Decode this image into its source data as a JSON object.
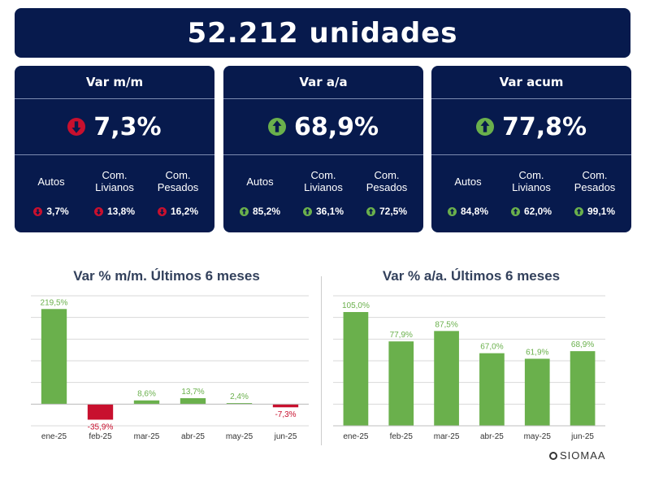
{
  "header": {
    "title": "52.212 unidades"
  },
  "cards": [
    {
      "title": "Var m/m",
      "value": "7,3%",
      "direction": "down",
      "subs": [
        {
          "label": "Autos",
          "value": "3,7%",
          "direction": "down"
        },
        {
          "label": "Com.\nLivianos",
          "value": "13,8%",
          "direction": "down"
        },
        {
          "label": "Com.\nPesados",
          "value": "16,2%",
          "direction": "down"
        }
      ]
    },
    {
      "title": "Var a/a",
      "value": "68,9%",
      "direction": "up",
      "subs": [
        {
          "label": "Autos",
          "value": "85,2%",
          "direction": "up"
        },
        {
          "label": "Com.\nLivianos",
          "value": "36,1%",
          "direction": "up"
        },
        {
          "label": "Com.\nPesados",
          "value": "72,5%",
          "direction": "up"
        }
      ]
    },
    {
      "title": "Var acum",
      "value": "77,8%",
      "direction": "up",
      "subs": [
        {
          "label": "Autos",
          "value": "84,8%",
          "direction": "up"
        },
        {
          "label": "Com.\nLivianos",
          "value": "62,0%",
          "direction": "up"
        },
        {
          "label": "Com.\nPesados",
          "value": "99,1%",
          "direction": "up"
        }
      ]
    }
  ],
  "colors": {
    "navy": "#071a4d",
    "positive": "#6ab04c",
    "negative": "#c8102e"
  },
  "logo": {
    "text": "SIOMAA"
  },
  "chart_data": [
    {
      "type": "bar",
      "title": "Var % m/m. Últimos 6 meses",
      "categories": [
        "ene-25",
        "feb-25",
        "mar-25",
        "abr-25",
        "may-25",
        "jun-25"
      ],
      "values": [
        219.5,
        -35.9,
        8.6,
        13.7,
        2.4,
        -7.3
      ],
      "labels": [
        "219,5%",
        "-35,9%",
        "8,6%",
        "13,7%",
        "2,4%",
        "-7,3%"
      ],
      "ylim": [
        -50,
        250
      ],
      "grid": true
    },
    {
      "type": "bar",
      "title": "Var % a/a. Últimos 6 meses",
      "categories": [
        "ene-25",
        "feb-25",
        "mar-25",
        "abr-25",
        "may-25",
        "jun-25"
      ],
      "values": [
        105.0,
        77.9,
        87.5,
        67.0,
        61.9,
        68.9
      ],
      "labels": [
        "105,0%",
        "77,9%",
        "87,5%",
        "67,0%",
        "61,9%",
        "68,9%"
      ],
      "ylim": [
        0,
        120
      ],
      "grid": true
    }
  ]
}
